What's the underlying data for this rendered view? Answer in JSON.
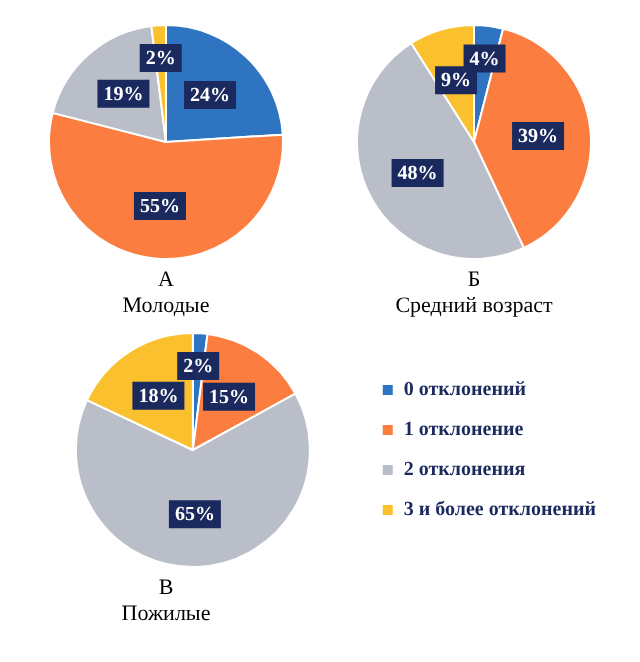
{
  "chart_data": [
    {
      "type": "pie",
      "title": "А",
      "subtitle": "Молодые",
      "categories": [
        null,
        null,
        null,
        null
      ],
      "values": [
        24,
        55,
        19,
        2
      ],
      "value_labels": [
        "24%",
        "55%",
        "19%",
        "2%"
      ],
      "colors": [
        "#2e74c0",
        "#fb7d3f",
        "#b9bec9",
        "#fbc02d"
      ],
      "legend": false
    },
    {
      "type": "pie",
      "title": "Б",
      "subtitle": "Средний возраст",
      "categories": [
        null,
        null,
        null,
        null
      ],
      "values": [
        4,
        39,
        48,
        9
      ],
      "value_labels": [
        "4%",
        "39%",
        "48%",
        "9%"
      ],
      "colors": [
        "#2e74c0",
        "#fb7d3f",
        "#b9bec9",
        "#fbc02d"
      ],
      "legend": false
    },
    {
      "type": "pie",
      "title": "В",
      "subtitle": "Пожилые",
      "categories": [
        "0 отклонений",
        "1 отклонение",
        "2 отклонения",
        "3 и более отклонений"
      ],
      "values": [
        2,
        15,
        65,
        18
      ],
      "value_labels": [
        "2%",
        "15%",
        "65%",
        "18%"
      ],
      "colors": [
        "#2e74c0",
        "#fb7d3f",
        "#b9bec9",
        "#fbc02d"
      ],
      "legend": "right"
    }
  ]
}
